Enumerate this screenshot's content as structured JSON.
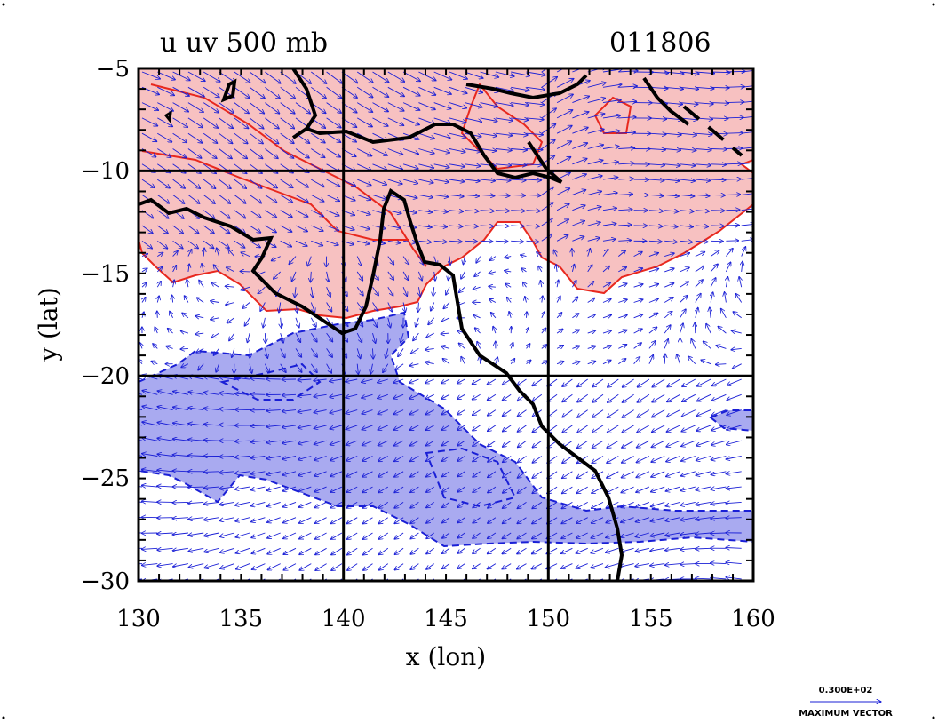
{
  "plot": {
    "title_left": "u  uv 500  mb",
    "title_right": "011806",
    "x_label": "x (lon)",
    "y_label": "y (lat)",
    "x_range": [
      130,
      160
    ],
    "y_range": [
      -30,
      -5
    ],
    "x_ticks": [
      "130",
      "135",
      "140",
      "145",
      "150",
      "155",
      "160"
    ],
    "y_ticks": [
      "−5",
      "−10",
      "−15",
      "−20",
      "−25",
      "−30"
    ],
    "grid_lons": [
      140,
      150
    ],
    "grid_lats": [
      -10,
      -20
    ],
    "positive_fill": "#f7c1c1",
    "positive_line": "#e8281e",
    "negative_fill": "#a9aaf0",
    "negative_line": "#1a1fd6",
    "coast_color": "#000000",
    "vector_color": "#1a1fd6"
  },
  "legend": {
    "magnitude": "0.300E+02",
    "caption": "MAXIMUM VECTOR"
  }
}
